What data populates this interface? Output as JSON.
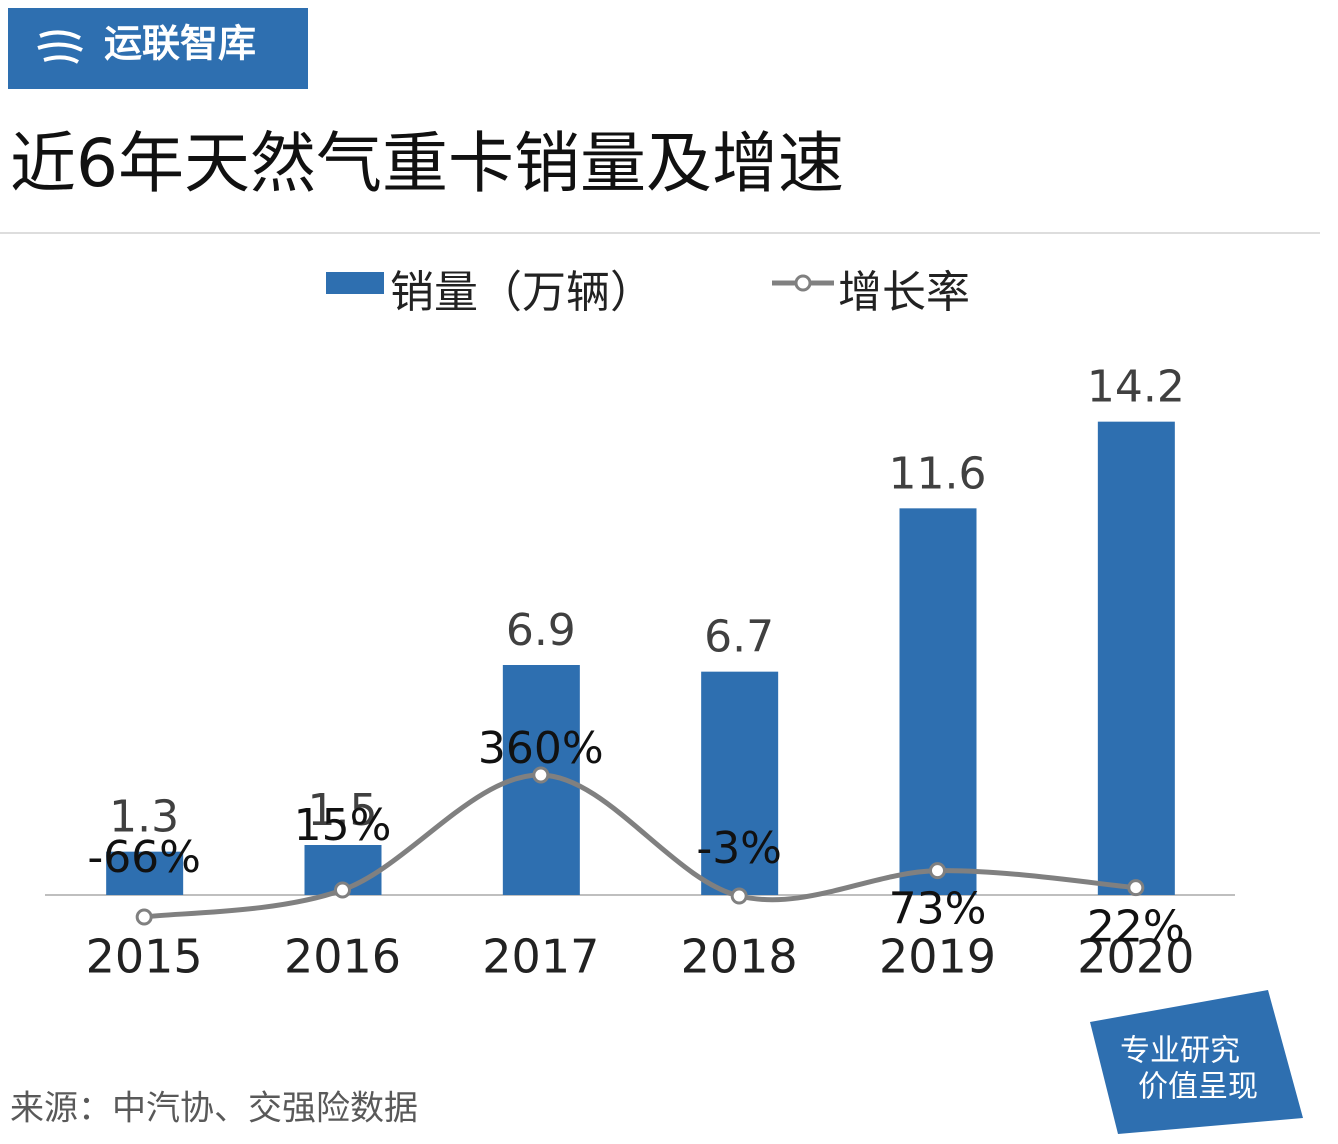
{
  "header": {
    "logo": "运联智库",
    "badge": [
      "专业研究",
      "价值呈现"
    ]
  },
  "chart_data": {
    "type": "bar",
    "title": "近6年天然气重卡销量及增速",
    "categories": [
      "2015",
      "2016",
      "2017",
      "2018",
      "2019",
      "2020"
    ],
    "series": [
      {
        "name": "销量（万辆）",
        "type": "bar",
        "color": "#2e6fb0",
        "values": [
          1.3,
          1.5,
          6.9,
          6.7,
          11.6,
          14.2
        ]
      },
      {
        "name": "增长率",
        "type": "line",
        "axis": "y2",
        "color": "#808080",
        "values": [
          -66,
          15,
          360,
          -3,
          73,
          22
        ],
        "value_labels": [
          "-66%",
          "15%",
          "360%",
          "-3%",
          "73%",
          "22%"
        ]
      }
    ],
    "ylim": [
      0,
      15
    ],
    "y2lim": [
      0,
      1500
    ],
    "legend": "top"
  },
  "footer": {
    "source": "来源：中汽协、交强险数据"
  }
}
